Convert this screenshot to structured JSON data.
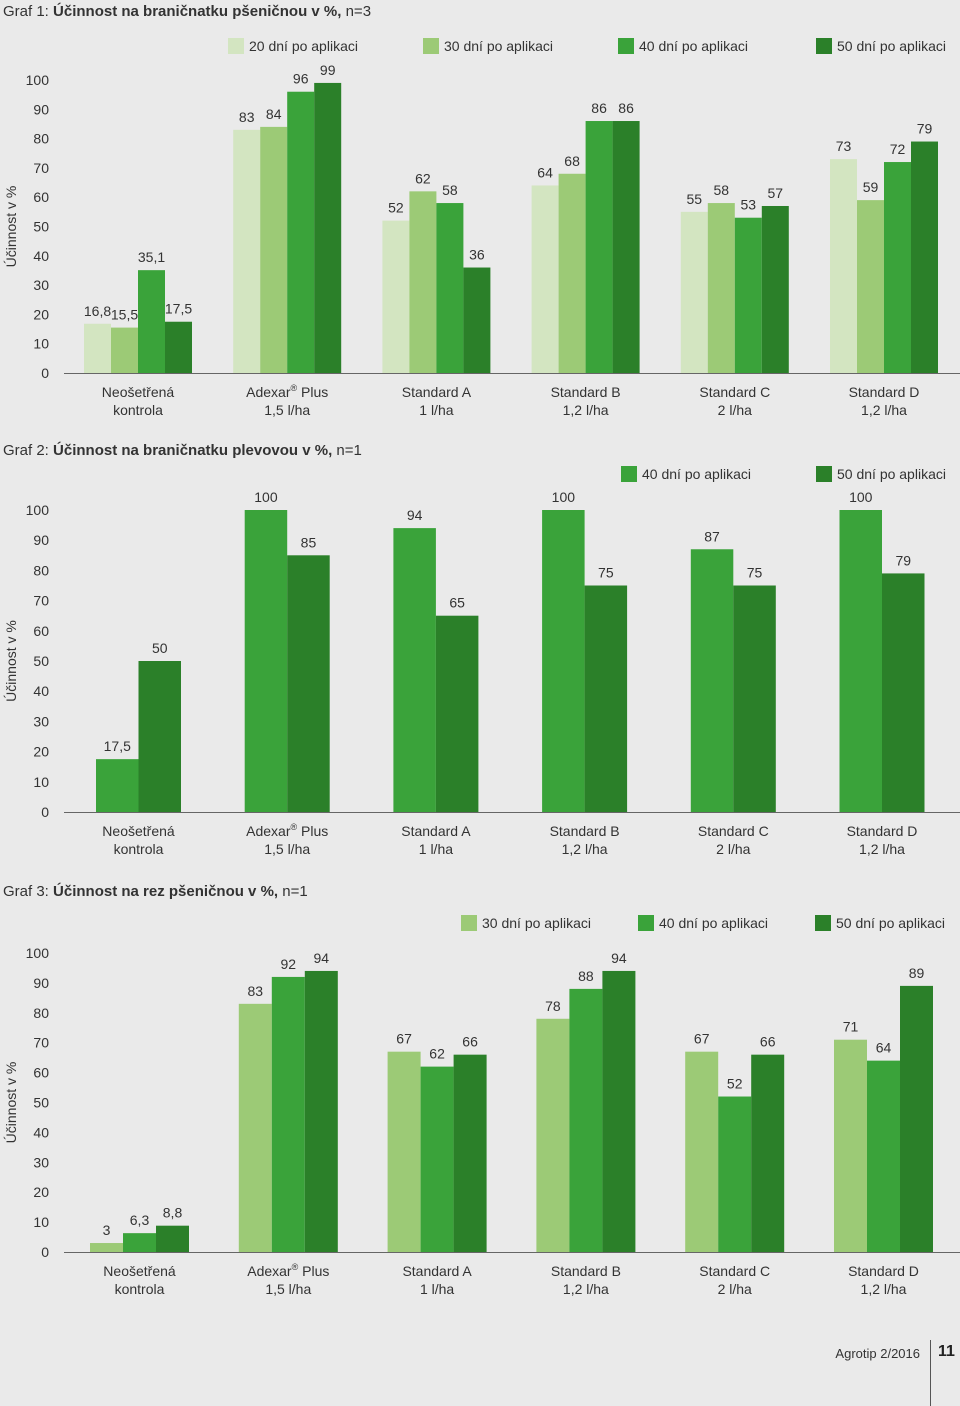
{
  "colors": {
    "d20": "#d3e5c1",
    "d30": "#9cca76",
    "d40": "#3aa33a",
    "d50": "#2b8029"
  },
  "page": {
    "journal": "Agrotip 2/2016",
    "number": "11"
  },
  "chart_data": [
    {
      "type": "bar",
      "title_prefix": "Graf 1: ",
      "title_bold": "Účinnost na braničnatku pšeničnou v %,",
      "title_suffix": " n=3",
      "ylabel": "Účinnost v %",
      "ylim": [
        0,
        100
      ],
      "yticks": [
        0,
        10,
        20,
        30,
        40,
        50,
        60,
        70,
        80,
        90,
        100
      ],
      "categories": [
        {
          "line1": "Neošetřená",
          "sup": "",
          "line1b": "",
          "line2": "kontrola"
        },
        {
          "line1": "Adexar",
          "sup": "®",
          "line1b": " Plus",
          "line2": "1,5 l/ha"
        },
        {
          "line1": "Standard A",
          "sup": "",
          "line1b": "",
          "line2": "1 l/ha"
        },
        {
          "line1": "Standard B",
          "sup": "",
          "line1b": "",
          "line2": "1,2 l/ha"
        },
        {
          "line1": "Standard C",
          "sup": "",
          "line1b": "",
          "line2": "2 l/ha"
        },
        {
          "line1": "Standard D",
          "sup": "",
          "line1b": "",
          "line2": "1,2 l/ha"
        }
      ],
      "series": [
        {
          "name": "20 dní po aplikaci",
          "color": "#d3e5c1",
          "values": [
            16.8,
            83,
            52,
            64,
            55,
            73
          ],
          "labels": [
            "16,8",
            "83",
            "52",
            "64",
            "55",
            "73"
          ]
        },
        {
          "name": "30 dní po aplikaci",
          "color": "#9cca76",
          "values": [
            15.5,
            84,
            62,
            68,
            58,
            59
          ],
          "labels": [
            "15,5",
            "84",
            "62",
            "68",
            "58",
            "59"
          ]
        },
        {
          "name": "40 dní po aplikaci",
          "color": "#3aa33a",
          "values": [
            35.1,
            96,
            58,
            86,
            53,
            72
          ],
          "labels": [
            "35,1",
            "96",
            "58",
            "86",
            "53",
            "72"
          ]
        },
        {
          "name": "50 dní po aplikaci",
          "color": "#2b8029",
          "values": [
            17.5,
            99,
            36,
            86,
            57,
            79
          ],
          "labels": [
            "17,5",
            "99",
            "36",
            "86",
            "57",
            "79"
          ]
        }
      ]
    },
    {
      "type": "bar",
      "title_prefix": "Graf 2: ",
      "title_bold": "Účinnost na braničnatku plevovou v %,",
      "title_suffix": " n=1",
      "ylabel": "Účinnost v %",
      "ylim": [
        0,
        100
      ],
      "yticks": [
        0,
        10,
        20,
        30,
        40,
        50,
        60,
        70,
        80,
        90,
        100
      ],
      "categories": [
        {
          "line1": "Neošetřená",
          "sup": "",
          "line1b": "",
          "line2": "kontrola"
        },
        {
          "line1": "Adexar",
          "sup": "®",
          "line1b": " Plus",
          "line2": "1,5 l/ha"
        },
        {
          "line1": "Standard A",
          "sup": "",
          "line1b": "",
          "line2": "1 l/ha"
        },
        {
          "line1": "Standard B",
          "sup": "",
          "line1b": "",
          "line2": "1,2 l/ha"
        },
        {
          "line1": "Standard C",
          "sup": "",
          "line1b": "",
          "line2": "2 l/ha"
        },
        {
          "line1": "Standard D",
          "sup": "",
          "line1b": "",
          "line2": "1,2 l/ha"
        }
      ],
      "series": [
        {
          "name": "40 dní po aplikaci",
          "color": "#3aa33a",
          "values": [
            17.5,
            100,
            94,
            100,
            87,
            100
          ],
          "labels": [
            "17,5",
            "100",
            "94",
            "100",
            "87",
            "100"
          ]
        },
        {
          "name": "50 dní po aplikaci",
          "color": "#2b8029",
          "values": [
            50,
            85,
            65,
            75,
            75,
            79
          ],
          "labels": [
            "50",
            "85",
            "65",
            "75",
            "75",
            "79"
          ]
        }
      ]
    },
    {
      "type": "bar",
      "title_prefix": "Graf 3: ",
      "title_bold": "Účinnost na rez pšeničnou v %,",
      "title_suffix": " n=1",
      "ylabel": "Účinnost v %",
      "ylim": [
        0,
        100
      ],
      "yticks": [
        0,
        10,
        20,
        30,
        40,
        50,
        60,
        70,
        80,
        90,
        100
      ],
      "categories": [
        {
          "line1": "Neošetřená",
          "sup": "",
          "line1b": "",
          "line2": "kontrola"
        },
        {
          "line1": "Adexar",
          "sup": "®",
          "line1b": " Plus",
          "line2": "1,5 l/ha"
        },
        {
          "line1": "Standard A",
          "sup": "",
          "line1b": "",
          "line2": "1 l/ha"
        },
        {
          "line1": "Standard B",
          "sup": "",
          "line1b": "",
          "line2": "1,2 l/ha"
        },
        {
          "line1": "Standard C",
          "sup": "",
          "line1b": "",
          "line2": "2 l/ha"
        },
        {
          "line1": "Standard D",
          "sup": "",
          "line1b": "",
          "line2": "1,2 l/ha"
        }
      ],
      "series": [
        {
          "name": "30 dní po aplikaci",
          "color": "#9cca76",
          "values": [
            3,
            83,
            67,
            78,
            67,
            71
          ],
          "labels": [
            "3",
            "83",
            "67",
            "78",
            "67",
            "71"
          ]
        },
        {
          "name": "40 dní po aplikaci",
          "color": "#3aa33a",
          "values": [
            6.3,
            92,
            62,
            88,
            52,
            64
          ],
          "labels": [
            "6,3",
            "92",
            "62",
            "88",
            "52",
            "64"
          ]
        },
        {
          "name": "50 dní po aplikaci",
          "color": "#2b8029",
          "values": [
            8.8,
            94,
            66,
            94,
            66,
            89
          ],
          "labels": [
            "8,8",
            "94",
            "66",
            "94",
            "66",
            "89"
          ]
        }
      ]
    }
  ]
}
